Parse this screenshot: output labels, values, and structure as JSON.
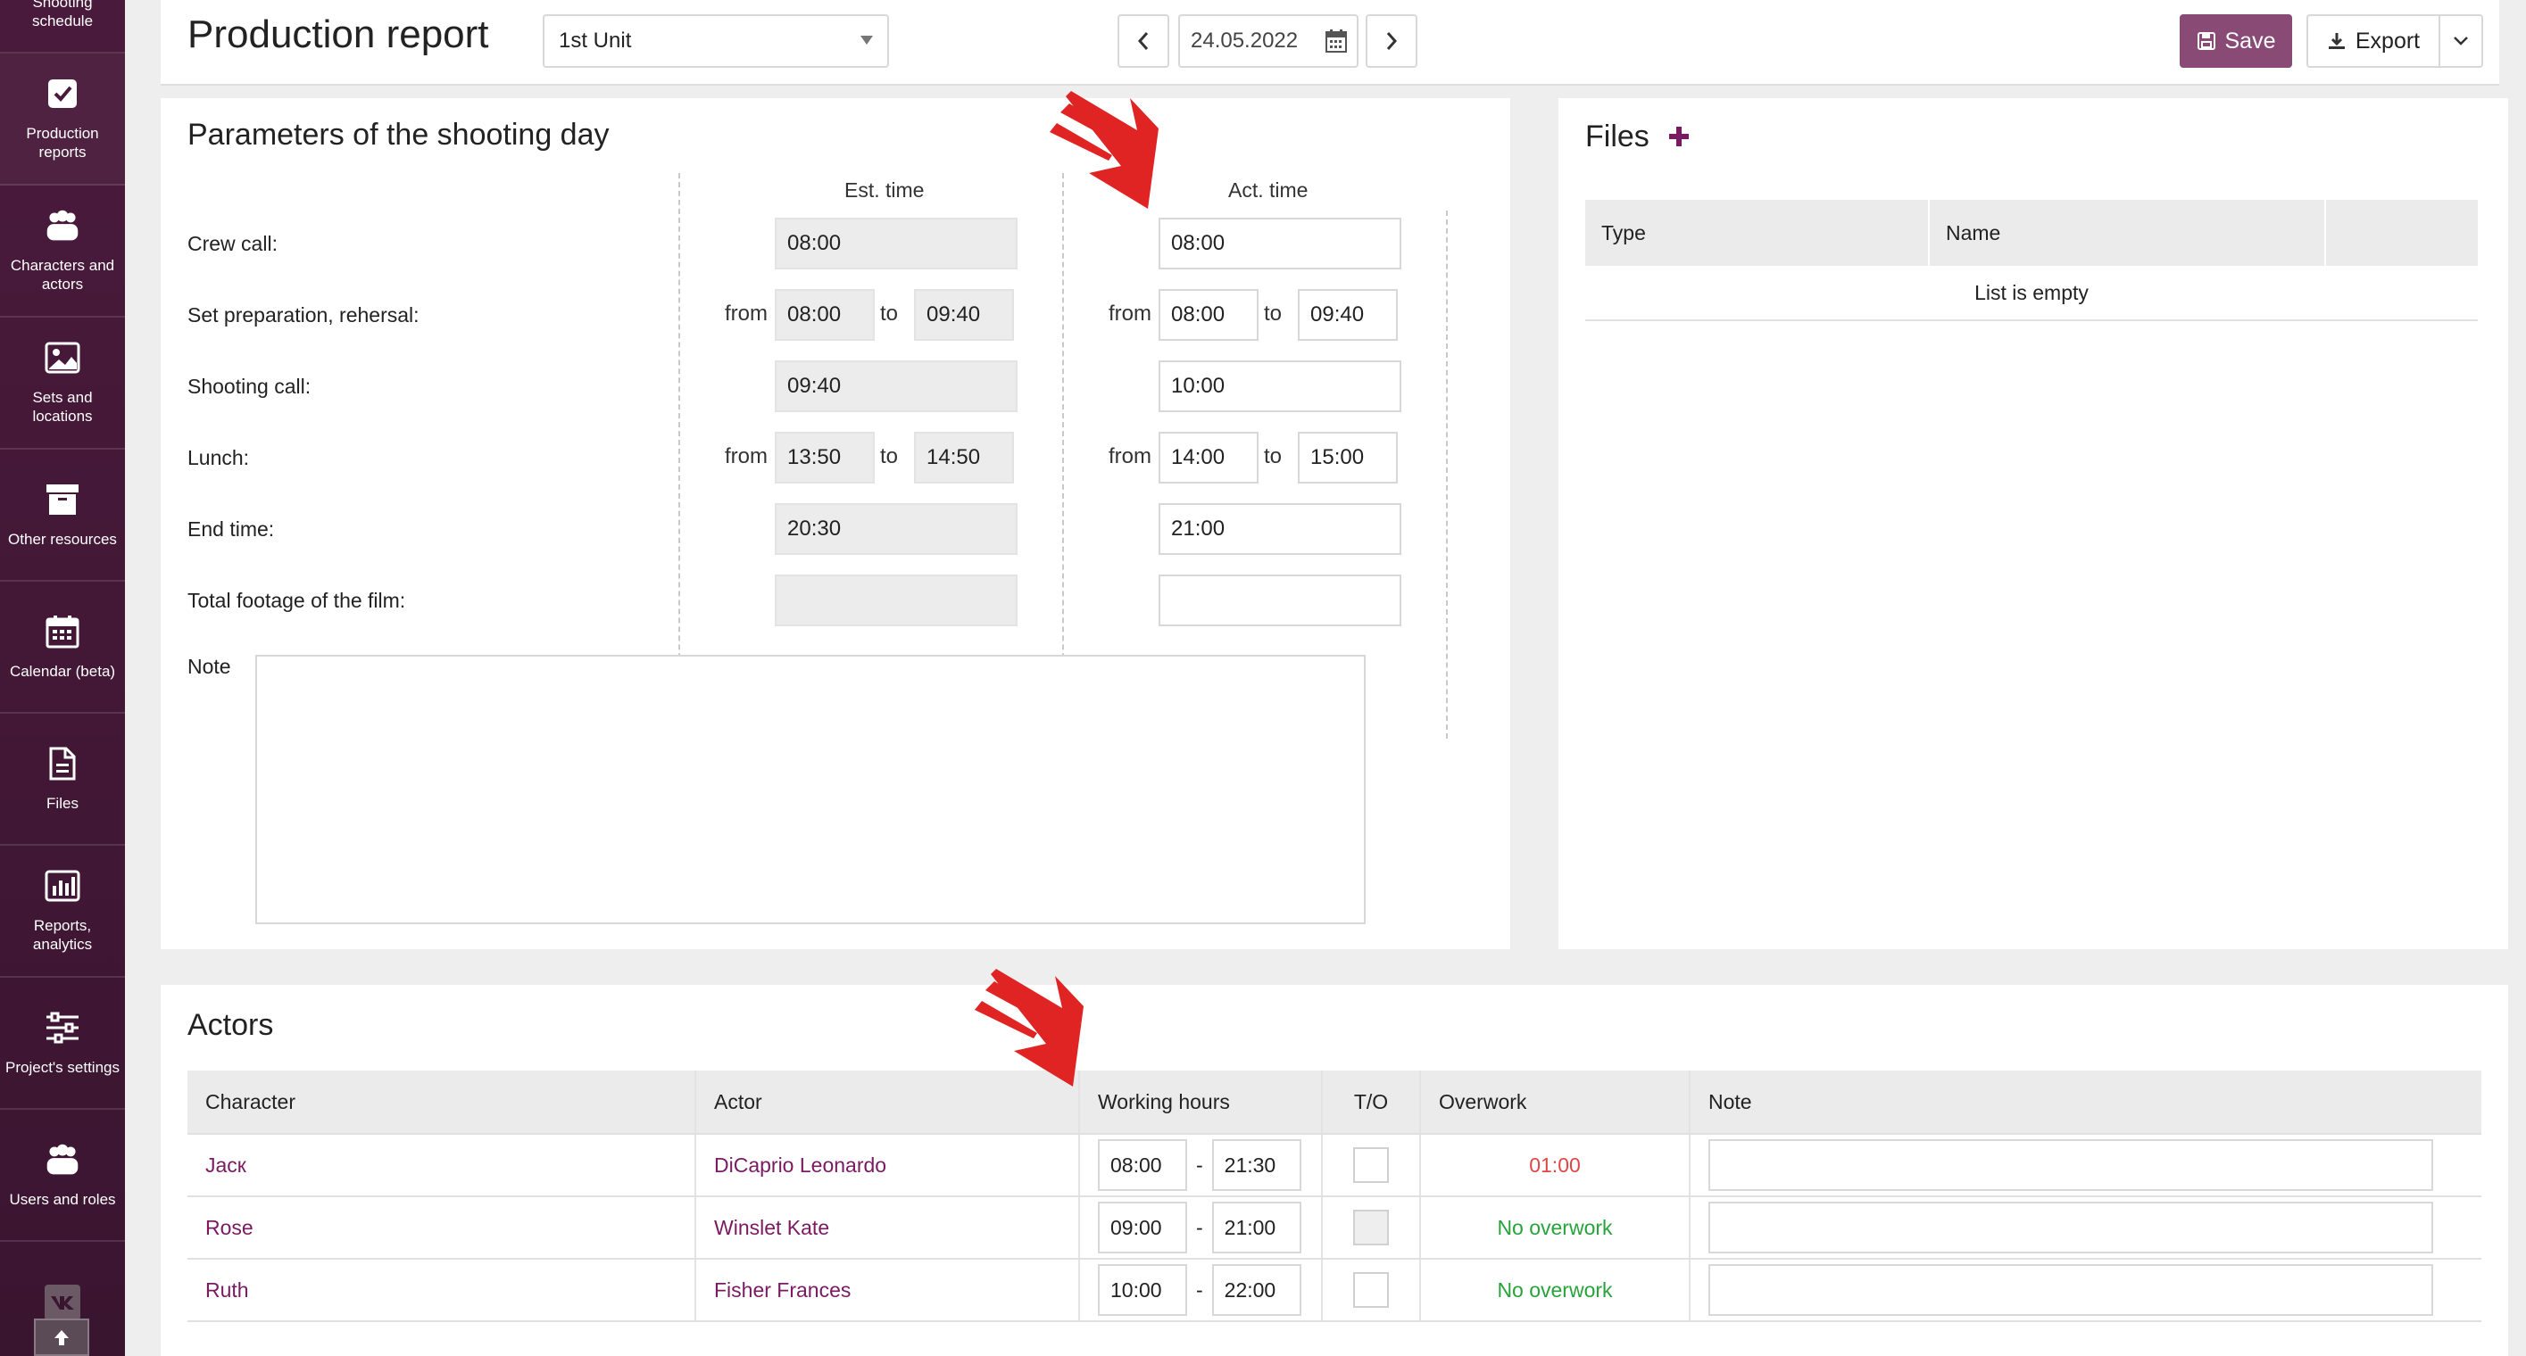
{
  "sidebar": {
    "items": [
      {
        "label": "Shooting schedule",
        "icon": "schedule-icon"
      },
      {
        "label": "Production reports",
        "icon": "checkbox-icon"
      },
      {
        "label": "Characters and actors",
        "icon": "people-icon"
      },
      {
        "label": "Sets and locations",
        "icon": "image-icon"
      },
      {
        "label": "Other resources",
        "icon": "archive-icon"
      },
      {
        "label": "Calendar (beta)",
        "icon": "calendar-icon"
      },
      {
        "label": "Files",
        "icon": "file-icon"
      },
      {
        "label": "Reports, analytics",
        "icon": "bar-chart-icon"
      },
      {
        "label": "Project's settings",
        "icon": "sliders-icon"
      },
      {
        "label": "Users and roles",
        "icon": "users-icon"
      }
    ]
  },
  "header": {
    "title": "Production report",
    "unit": "1st Unit",
    "date": "24.05.2022",
    "save_label": "Save",
    "export_label": "Export"
  },
  "params": {
    "title": "Parameters of the shooting day",
    "est_header": "Est. time",
    "act_header": "Act. time",
    "from_label": "from",
    "to_label": "to",
    "note_label": "Note",
    "rows": {
      "crew_call": {
        "label": "Crew call:",
        "est": "08:00",
        "act": "08:00"
      },
      "set_prep": {
        "label": "Set preparation, rehersal:",
        "est_from": "08:00",
        "est_to": "09:40",
        "act_from": "08:00",
        "act_to": "09:40"
      },
      "shooting_call": {
        "label": "Shooting call:",
        "est": "09:40",
        "act": "10:00"
      },
      "lunch": {
        "label": "Lunch:",
        "est_from": "13:50",
        "est_to": "14:50",
        "act_from": "14:00",
        "act_to": "15:00"
      },
      "end_time": {
        "label": "End time:",
        "est": "20:30",
        "act": "21:00"
      },
      "footage": {
        "label": "Total footage of the film:",
        "est": "",
        "act": ""
      }
    }
  },
  "files": {
    "title": "Files",
    "columns": [
      "Type",
      "Name",
      ""
    ],
    "empty": "List is empty"
  },
  "actors": {
    "title": "Actors",
    "columns": [
      "Character",
      "Actor",
      "Working hours",
      "T/O",
      "Overwork",
      "Note"
    ],
    "rows": [
      {
        "character": "Jacк",
        "actor": "DiCaprio Leonardo",
        "from": "08:00",
        "to": "21:30",
        "overwork": "01:00",
        "overwork_status": "red"
      },
      {
        "character": "Rose",
        "actor": "Winslet Kate",
        "from": "09:00",
        "to": "21:00",
        "overwork": "No overwork",
        "overwork_status": "green"
      },
      {
        "character": "Ruth",
        "actor": "Fisher Frances",
        "from": "10:00",
        "to": "22:00",
        "overwork": "No overwork",
        "overwork_status": "green"
      }
    ],
    "separator": "-"
  },
  "colors": {
    "sidebar": "#4a1a3c",
    "accent": "#8a4a76",
    "link": "#7a1a62",
    "overwork_red": "#e04646",
    "overwork_green": "#27a33b",
    "arrow": "#e02424"
  }
}
